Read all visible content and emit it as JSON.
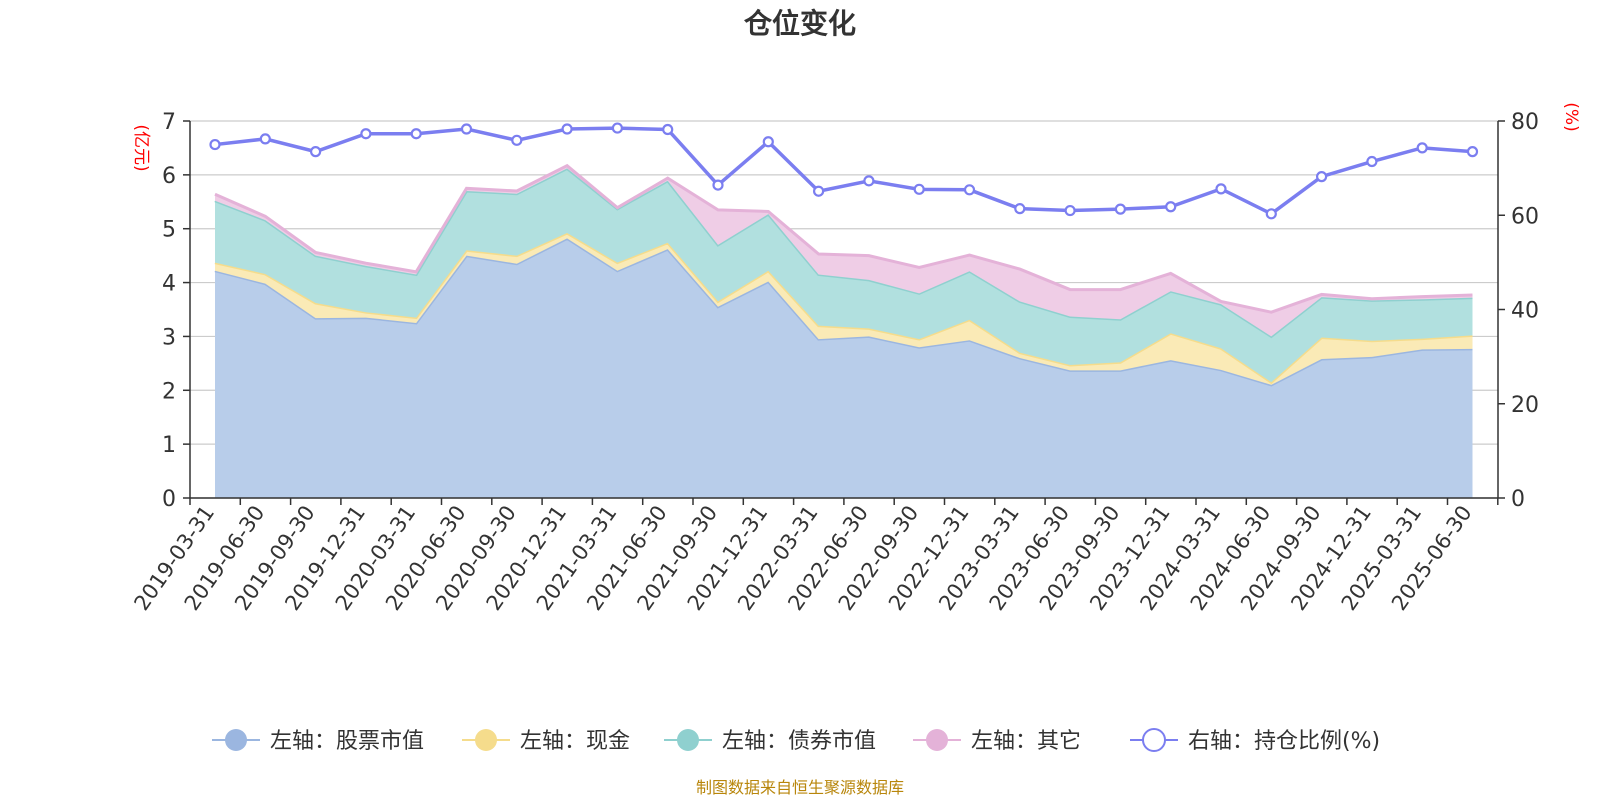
{
  "chart_data": {
    "type": "area",
    "title": "仓位变化",
    "left_unit": "(亿元)",
    "right_unit": "(%)",
    "left_ylim": [
      0,
      7
    ],
    "left_yticks": [
      "0",
      "1",
      "2",
      "3",
      "4",
      "5",
      "6",
      "7"
    ],
    "right_ylim": [
      0,
      80
    ],
    "right_yticks": [
      "0",
      "20",
      "40",
      "60",
      "80"
    ],
    "grid": true,
    "legend_position": "bottom",
    "categories": [
      "2019-03-31",
      "2019-06-30",
      "2019-09-30",
      "2019-12-31",
      "2020-03-31",
      "2020-06-30",
      "2020-09-30",
      "2020-12-31",
      "2021-03-31",
      "2021-06-30",
      "2021-09-30",
      "2021-12-31",
      "2022-03-31",
      "2022-06-30",
      "2022-09-30",
      "2022-12-31",
      "2023-03-31",
      "2023-06-30",
      "2023-09-30",
      "2023-12-31",
      "2024-03-31",
      "2024-06-30",
      "2024-09-30",
      "2024-12-31",
      "2025-03-31",
      "2025-06-30"
    ],
    "stacked_series": [
      {
        "name": "左轴：股票市值",
        "axis": "left",
        "color": "#9bb6e0",
        "fill": "#b8cdea",
        "values": [
          4.22,
          3.98,
          3.34,
          3.35,
          3.25,
          4.5,
          4.35,
          4.82,
          4.22,
          4.62,
          3.55,
          4.02,
          2.95,
          3.0,
          2.8,
          2.93,
          2.6,
          2.37,
          2.37,
          2.56,
          2.38,
          2.1,
          2.58,
          2.62,
          2.76,
          2.77
        ]
      },
      {
        "name": "左轴：现金",
        "axis": "left",
        "color": "#f5dc8c",
        "fill": "#faeab6",
        "values": [
          0.15,
          0.18,
          0.28,
          0.1,
          0.1,
          0.1,
          0.15,
          0.1,
          0.15,
          0.12,
          0.1,
          0.2,
          0.25,
          0.15,
          0.15,
          0.38,
          0.1,
          0.1,
          0.15,
          0.5,
          0.4,
          0.05,
          0.4,
          0.3,
          0.2,
          0.25
        ]
      },
      {
        "name": "左轴：债券市值",
        "axis": "left",
        "color": "#8fd0cf",
        "fill": "#b1e0df",
        "values": [
          1.15,
          1.0,
          0.88,
          0.86,
          0.8,
          1.1,
          1.15,
          1.2,
          1.0,
          1.15,
          1.05,
          1.05,
          0.95,
          0.9,
          0.85,
          0.9,
          0.95,
          0.9,
          0.8,
          0.78,
          0.82,
          0.85,
          0.75,
          0.75,
          0.73,
          0.7
        ]
      },
      {
        "name": "左轴：其它",
        "axis": "left",
        "color": "#e4b2d8",
        "fill": "#efcde6",
        "values": [
          0.12,
          0.07,
          0.06,
          0.05,
          0.05,
          0.05,
          0.05,
          0.05,
          0.02,
          0.05,
          0.65,
          0.05,
          0.38,
          0.45,
          0.48,
          0.3,
          0.6,
          0.5,
          0.55,
          0.33,
          0.05,
          0.45,
          0.05,
          0.03,
          0.05,
          0.05
        ]
      }
    ],
    "line_series": {
      "name": "右轴：持仓比例(%)",
      "axis": "right",
      "color": "#7b7ef0",
      "values": [
        75.0,
        76.2,
        73.5,
        77.3,
        77.3,
        78.3,
        75.9,
        78.3,
        78.5,
        78.2,
        66.4,
        75.6,
        65.1,
        67.3,
        65.5,
        65.4,
        61.4,
        61.0,
        61.3,
        61.8,
        65.6,
        60.3,
        68.2,
        71.4,
        74.3,
        73.5
      ]
    }
  },
  "footer": {
    "source": "制图数据来自恒生聚源数据库"
  }
}
